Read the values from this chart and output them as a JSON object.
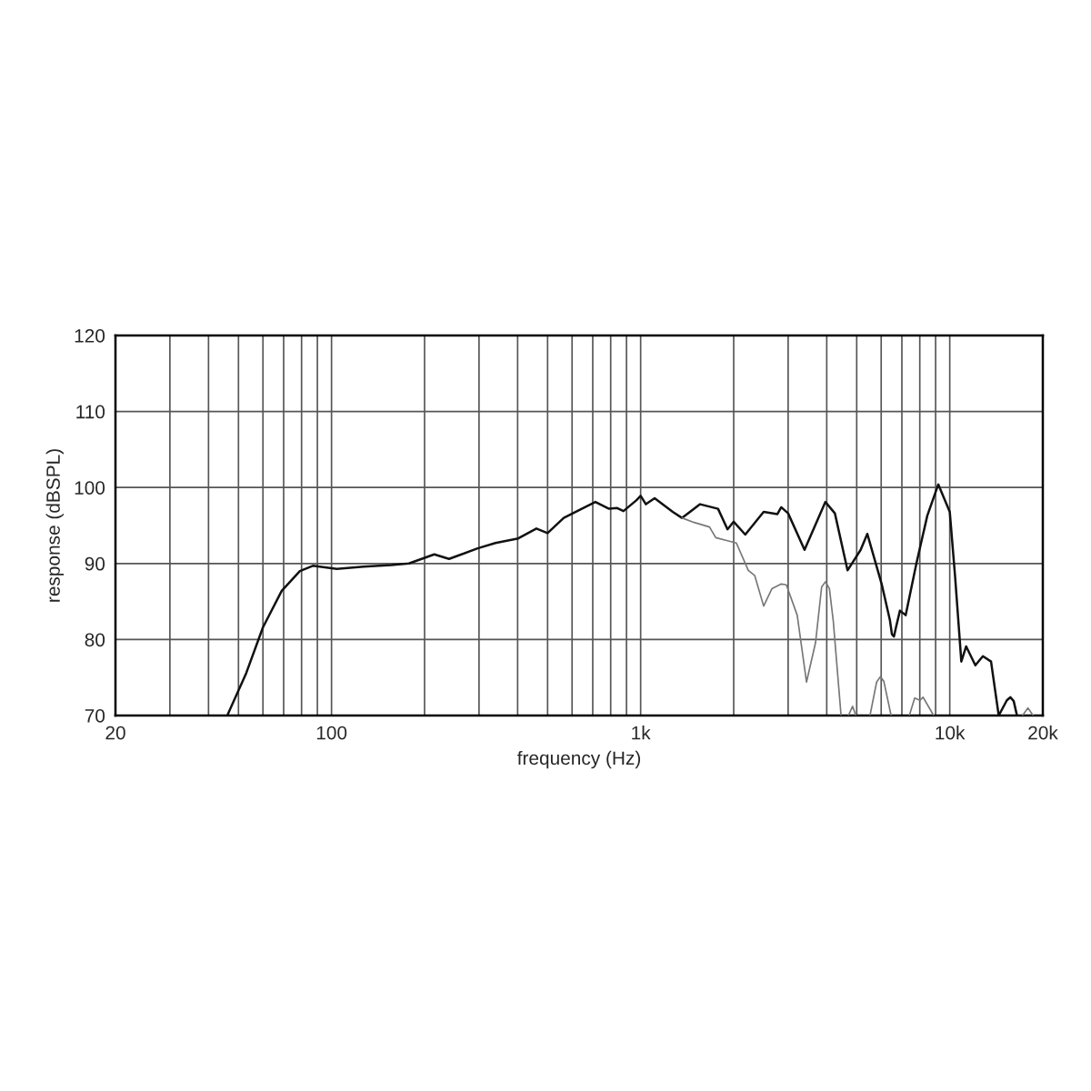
{
  "chart_data": {
    "type": "line",
    "xlabel": "frequency (Hz)",
    "ylabel": "response (dBSPL)",
    "log": "x",
    "grid": true,
    "line_style": "solid",
    "marker": "none",
    "xlim": [
      20,
      20000
    ],
    "ylim": [
      70,
      120
    ],
    "xticks": [
      {
        "value": 20,
        "label": "20"
      },
      {
        "value": 30,
        "label": null
      },
      {
        "value": 40,
        "label": null
      },
      {
        "value": 50,
        "label": null
      },
      {
        "value": 60,
        "label": null
      },
      {
        "value": 70,
        "label": null
      },
      {
        "value": 80,
        "label": null
      },
      {
        "value": 90,
        "label": null
      },
      {
        "value": 100,
        "label": "100"
      },
      {
        "value": 200,
        "label": null
      },
      {
        "value": 300,
        "label": null
      },
      {
        "value": 400,
        "label": null
      },
      {
        "value": 500,
        "label": null
      },
      {
        "value": 600,
        "label": null
      },
      {
        "value": 700,
        "label": null
      },
      {
        "value": 800,
        "label": null
      },
      {
        "value": 900,
        "label": null
      },
      {
        "value": 1000,
        "label": "1k"
      },
      {
        "value": 2000,
        "label": null
      },
      {
        "value": 3000,
        "label": null
      },
      {
        "value": 4000,
        "label": null
      },
      {
        "value": 5000,
        "label": null
      },
      {
        "value": 6000,
        "label": null
      },
      {
        "value": 7000,
        "label": null
      },
      {
        "value": 8000,
        "label": null
      },
      {
        "value": 9000,
        "label": null
      },
      {
        "value": 10000,
        "label": "10k"
      },
      {
        "value": 20000,
        "label": "20k"
      }
    ],
    "yticks": [
      70,
      80,
      90,
      100,
      110,
      120
    ],
    "series": [
      {
        "color": "#111111",
        "x": [
          46,
          53,
          60,
          69,
          79,
          87,
          104,
          127,
          156,
          178,
          215,
          240,
          297,
          339,
          402,
          460,
          500,
          564,
          645,
          714,
          790,
          840,
          880,
          968,
          1000,
          1040,
          1110,
          1270,
          1360,
          1557,
          1780,
          1910,
          2000,
          2180,
          2500,
          2770,
          2850,
          3000,
          3390,
          3960,
          4250,
          4670,
          5150,
          5410,
          6030,
          6400,
          6500,
          6600,
          6700,
          6900,
          7200,
          7800,
          8460,
          9180,
          10000,
          10400,
          10900,
          11300,
          12100,
          12800,
          13600,
          14400,
          15300,
          15700,
          16100,
          16500
        ],
        "values": [
          70,
          75.6,
          81.6,
          86.4,
          89.0,
          89.7,
          89.3,
          89.6,
          89.8,
          90.0,
          91.2,
          90.6,
          92.0,
          92.7,
          93.3,
          94.6,
          94.0,
          96.0,
          97.2,
          98.1,
          97.2,
          97.3,
          96.9,
          98.3,
          98.9,
          97.8,
          98.6,
          96.8,
          96.0,
          97.8,
          97.2,
          94.5,
          95.5,
          93.8,
          96.8,
          96.5,
          97.4,
          96.6,
          91.8,
          98.1,
          96.6,
          89.1,
          91.8,
          93.9,
          87.2,
          82.6,
          80.7,
          80.4,
          81.6,
          83.8,
          83.2,
          90.0,
          96.3,
          100.4,
          96.8,
          88.4,
          77.1,
          79.1,
          76.6,
          77.8,
          77.1,
          70,
          72.0,
          72.4,
          71.9,
          70
        ]
      },
      {
        "color": "#777777",
        "x": [
          1360,
          1490,
          1670,
          1750,
          1910,
          2040,
          2230,
          2340,
          2500,
          2660,
          2850,
          2960,
          3210,
          3440,
          3680,
          3850,
          3960,
          4080,
          4200,
          4450,
          4600,
          4700,
          4850,
          4970,
          5200,
          5520,
          5800,
          5960,
          6120,
          6460,
          7000,
          7400,
          7700,
          8000,
          8200,
          8870,
          12000,
          17200,
          17900,
          18600
        ],
        "values": [
          96.0,
          95.4,
          94.8,
          93.4,
          93.0,
          92.7,
          89.1,
          88.4,
          84.4,
          86.7,
          87.3,
          87.2,
          83.2,
          74.4,
          79.6,
          86.9,
          87.6,
          86.7,
          82.4,
          70,
          null,
          70,
          71.2,
          70,
          null,
          70,
          74.4,
          75.1,
          74.5,
          70,
          null,
          70,
          72.3,
          72.0,
          72.4,
          70,
          null,
          70,
          71,
          70
        ]
      }
    ]
  }
}
